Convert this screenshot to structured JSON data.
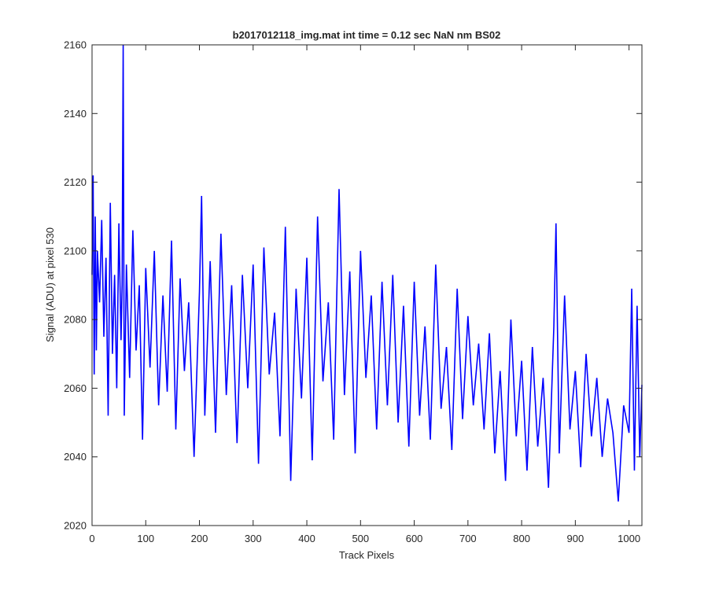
{
  "chart_data": {
    "type": "line",
    "title": "b2017012118_img.mat int time = 0.12 sec  NaN nm BS02",
    "xlabel": "Track Pixels",
    "ylabel": "Signal (ADU) at pixel 530",
    "xlim": [
      0,
      1024
    ],
    "ylim": [
      2020,
      2160
    ],
    "xticks": [
      0,
      100,
      200,
      300,
      400,
      500,
      600,
      700,
      800,
      900,
      1000
    ],
    "yticks": [
      2020,
      2040,
      2060,
      2080,
      2100,
      2120,
      2140,
      2160
    ],
    "grid": false,
    "legend": "none",
    "series": [
      {
        "color": "#0000ff",
        "x": [
          0,
          2,
          4,
          6,
          8,
          10,
          14,
          18,
          22,
          26,
          30,
          34,
          38,
          42,
          46,
          50,
          54,
          56,
          57,
          58,
          60,
          64,
          70,
          76,
          82,
          88,
          94,
          100,
          108,
          116,
          124,
          132,
          140,
          148,
          156,
          164,
          172,
          180,
          190,
          200,
          204,
          210,
          220,
          230,
          240,
          250,
          260,
          270,
          280,
          290,
          300,
          310,
          320,
          330,
          340,
          350,
          360,
          370,
          380,
          390,
          400,
          410,
          420,
          430,
          440,
          450,
          460,
          470,
          480,
          490,
          500,
          510,
          520,
          530,
          540,
          550,
          560,
          570,
          580,
          590,
          600,
          610,
          620,
          630,
          640,
          650,
          660,
          670,
          680,
          690,
          700,
          710,
          720,
          730,
          740,
          750,
          760,
          770,
          780,
          790,
          800,
          810,
          820,
          830,
          840,
          850,
          860,
          864,
          870,
          880,
          890,
          900,
          910,
          920,
          930,
          940,
          950,
          960,
          970,
          980,
          990,
          1000,
          1005,
          1010,
          1015,
          1020,
          1024
        ],
        "y": [
          2093,
          2122,
          2064,
          2110,
          2071,
          2100,
          2085,
          2109,
          2075,
          2098,
          2052,
          2114,
          2070,
          2093,
          2060,
          2108,
          2074,
          2090,
          2126,
          2160,
          2052,
          2096,
          2063,
          2106,
          2071,
          2090,
          2045,
          2095,
          2066,
          2100,
          2055,
          2087,
          2059,
          2103,
          2048,
          2092,
          2065,
          2085,
          2040,
          2088,
          2116,
          2052,
          2097,
          2047,
          2105,
          2058,
          2090,
          2044,
          2093,
          2060,
          2096,
          2038,
          2101,
          2064,
          2082,
          2046,
          2107,
          2033,
          2089,
          2057,
          2098,
          2039,
          2110,
          2062,
          2085,
          2045,
          2118,
          2058,
          2094,
          2041,
          2100,
          2063,
          2087,
          2048,
          2091,
          2055,
          2093,
          2050,
          2084,
          2043,
          2091,
          2052,
          2078,
          2045,
          2096,
          2054,
          2072,
          2042,
          2089,
          2051,
          2081,
          2055,
          2073,
          2048,
          2076,
          2041,
          2065,
          2033,
          2080,
          2046,
          2068,
          2036,
          2072,
          2043,
          2063,
          2031,
          2078,
          2108,
          2041,
          2087,
          2048,
          2065,
          2037,
          2070,
          2046,
          2063,
          2040,
          2057,
          2047,
          2027,
          2055,
          2047,
          2089,
          2036,
          2084,
          2040,
          2061
        ]
      }
    ]
  }
}
